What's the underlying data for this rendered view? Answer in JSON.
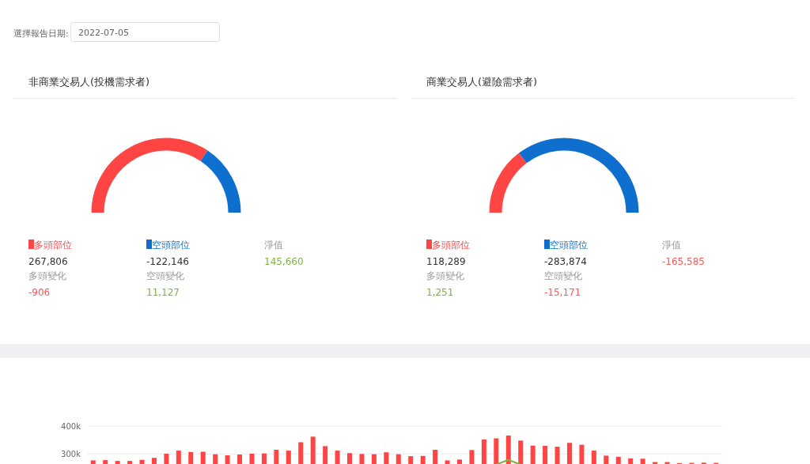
{
  "chart_data": [
    {
      "type": "donut",
      "title": "非商業交易人(投機需求者)",
      "categories": [
        "多頭部位",
        "空頭部位"
      ],
      "values": [
        68.7,
        31.3
      ],
      "legend": "bottom",
      "colors": [
        "#ff4444",
        "#0e6fce"
      ],
      "annotations": [
        "選擇報告日期:",
        "2022-07-05",
        "267,806",
        "-122,146",
        "淨值",
        "145,660",
        "多頭變化",
        "-906",
        "空頭變化",
        "11,127"
      ]
    },
    {
      "type": "donut",
      "title": "商業交易人(避險需求者)",
      "categories": [
        "多頭部位",
        "空頭部位"
      ],
      "values": [
        29.4,
        70.6
      ],
      "legend": "bottom",
      "colors": [
        "#ff4444",
        "#0e6fce"
      ],
      "annotations": [
        "118,289",
        "-283,874",
        "淨值",
        "-165,585",
        "多頭變化",
        "1,251",
        "空頭變化",
        "-15,171"
      ]
    },
    {
      "type": "bar",
      "categories": [
        null,
        null,
        null,
        null,
        null,
        null,
        null,
        null,
        null,
        null,
        null,
        null,
        null,
        null,
        null,
        null,
        null,
        null,
        null,
        null,
        null,
        null,
        null,
        null,
        null,
        null,
        null,
        null,
        null,
        null,
        null,
        null,
        null,
        null,
        null,
        null,
        null,
        null,
        null,
        null,
        null,
        null,
        null,
        null,
        null,
        null,
        null,
        null,
        null,
        null,
        null,
        null
      ],
      "series": [
        {
          "type": "bar",
          "color": "#ff4444",
          "values": [
            277000,
            278000,
            275000,
            275000,
            279000,
            286000,
            301000,
            312000,
            307000,
            308000,
            299000,
            295000,
            298000,
            301000,
            302000,
            315000,
            312000,
            342000,
            362000,
            328000,
            312000,
            303000,
            300000,
            299000,
            306000,
            299000,
            292000,
            293000,
            315000,
            277000,
            280000,
            314000,
            352000,
            356000,
            366000,
            348000,
            330000,
            329000,
            326000,
            340000,
            333000,
            312000,
            294000,
            290000,
            284000,
            283000,
            271000,
            271000,
            267000,
            268000,
            269000,
            268000
          ]
        },
        {
          "type": "line",
          "color": "#7cb342",
          "values": [
            null,
            null,
            null,
            null,
            null,
            null,
            null,
            null,
            null,
            null,
            null,
            null,
            null,
            null,
            null,
            null,
            null,
            null,
            null,
            null,
            null,
            null,
            null,
            null,
            null,
            null,
            null,
            null,
            null,
            null,
            null,
            null,
            null,
            262000,
            279000,
            262000,
            null,
            null,
            null,
            null,
            null,
            null,
            null,
            null,
            null,
            null,
            null,
            null,
            null,
            null,
            null,
            null
          ]
        }
      ],
      "ylim": [
        0,
        400000
      ],
      "yticks": [
        {
          "value": 300000,
          "label": "300k"
        },
        {
          "value": 400000,
          "label": "400k"
        }
      ],
      "grid": "y",
      "tick_labels": "y"
    }
  ]
}
